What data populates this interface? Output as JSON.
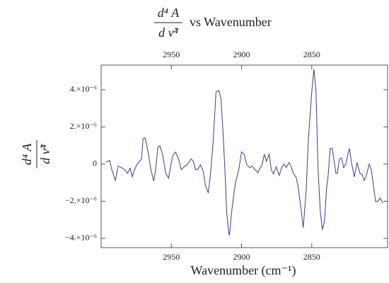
{
  "chart_data": {
    "type": "line",
    "title": {
      "numerator": "d⁴ A",
      "denominator": "d ν̃⁴",
      "text": "vs Wavenumber"
    },
    "x_label": "Wavenumber (cm⁻¹)",
    "y_label": {
      "numerator": "d⁴ A",
      "denominator": "d ν̃⁴"
    },
    "xlim": [
      3000,
      2796
    ],
    "xticks": [
      2950,
      2900,
      2850
    ],
    "ylim": [
      -4.5e-06,
      5.33e-06
    ],
    "yticks": [
      {
        "value": -4e-06,
        "label": "−4.×10⁻⁶"
      },
      {
        "value": -2e-06,
        "label": "−2.×10⁻⁶"
      },
      0,
      {
        "value": 2e-06,
        "label": "2.×10⁻⁶"
      },
      {
        "value": 4e-06,
        "label": "4.×10⁻⁶"
      }
    ],
    "x": [
      2996.5,
      2993.9,
      2992.4,
      2989.9,
      2987.9,
      2985.4,
      2983.3,
      2981.3,
      2979.3,
      2977.8,
      2976.3,
      2974.2,
      2972.7,
      2971.2,
      2970.2,
      2968.7,
      2966.7,
      2964.6,
      2962.6,
      2961.1,
      2959.6,
      2958.1,
      2956.1,
      2954.0,
      2952.0,
      2950.5,
      2949.0,
      2947.0,
      2944.9,
      2942.9,
      2940.9,
      2938.4,
      2935.9,
      2934.3,
      2932.8,
      2931.3,
      2929.3,
      2927.3,
      2925.8,
      2923.7,
      2922.2,
      2920.2,
      2918.2,
      2916.2,
      2914.6,
      2913.1,
      2911.6,
      2910.6,
      2909.1,
      2908.6,
      2907.1,
      2904.5,
      2902.0,
      2900.0,
      2898.0,
      2896.5,
      2894.4,
      2892.4,
      2890.4,
      2888.4,
      2886.9,
      2885.4,
      2883.8,
      2882.3,
      2880.3,
      2878.8,
      2877.3,
      2875.3,
      2873.2,
      2871.2,
      2869.7,
      2868.2,
      2866.2,
      2864.6,
      2863.1,
      2861.1,
      2859.6,
      2857.6,
      2856.1,
      2854.0,
      2852.5,
      2850.0,
      2848.5,
      2847.0,
      2845.5,
      2843.9,
      2842.4,
      2840.9,
      2839.4,
      2838.4,
      2836.9,
      2835.4,
      2834.3,
      2832.8,
      2831.8,
      2830.3,
      2828.8,
      2827.3,
      2825.8,
      2824.2,
      2823.2,
      2821.7,
      2819.7,
      2817.7,
      2815.7,
      2814.1,
      2812.6,
      2811.1,
      2809.1,
      2807.6,
      2806.1,
      2804.5,
      2803.0,
      2801.5,
      2799.5
    ],
    "series": [
      {
        "color": "#3b3b96",
        "values": [
          1.1e-07,
          1.9e-07,
          -3e-07,
          -8.8e-07,
          -1.1e-07,
          -1.9e-07,
          -3e-07,
          -5e-07,
          -2.3e-07,
          -6.9e-07,
          -3e-07,
          0,
          1.5e-07,
          2.7e-07,
          1.37e-06,
          1.41e-06,
          7.2e-07,
          -3e-07,
          -9.1e-07,
          -3e-07,
          9.1e-07,
          9.9e-07,
          4.6e-07,
          -5e-07,
          -7.6e-07,
          -1.1e-07,
          4.6e-07,
          6.5e-07,
          2.7e-07,
          -3e-07,
          -1.5e-07,
          0,
          2.7e-07,
          1.5e-07,
          -3e-07,
          -3e-07,
          -4e-08,
          -3.8e-07,
          -1.14e-06,
          -1.56e-06,
          -6.1e-07,
          1.22e-06,
          3.89e-06,
          3.96e-06,
          3.5e-06,
          1.6e-06,
          -6.9e-07,
          -2.59e-06,
          -3.73e-06,
          -3.81e-06,
          -2.59e-06,
          -1.07e-06,
          -3e-07,
          6.5e-07,
          5.3e-07,
          0,
          -1.9e-07,
          -1.1e-07,
          -3e-07,
          -4.6e-07,
          -2.3e-07,
          -4e-08,
          5.3e-07,
          1.5e-07,
          5.3e-07,
          -3e-07,
          -5.3e-07,
          -1.5e-07,
          -6.1e-07,
          -1.5e-07,
          0,
          -1.9e-07,
          8e-08,
          -1.5e-07,
          -5e-07,
          -7.2e-07,
          -1.26e-06,
          -2.44e-06,
          -3.43e-06,
          -1.45e-06,
          1.22e-06,
          3.89e-06,
          5.1e-06,
          3.89e-06,
          -3e-07,
          -2.59e-06,
          -3.54e-06,
          -3.05e-06,
          -1.26e-06,
          -6.9e-07,
          8.4e-07,
          8.4e-07,
          2.7e-07,
          -5e-07,
          -5e-07,
          2.7e-07,
          3.4e-07,
          -1.9e-07,
          0,
          5.3e-07,
          8.4e-07,
          8e-08,
          -6.9e-07,
          8e-08,
          -5e-07,
          -5.7e-07,
          -8.8e-07,
          -6.1e-07,
          0,
          -3e-07,
          -1.14e-06,
          -2.02e-06,
          -2.02e-06,
          -1.83e-06,
          -2.1e-06
        ]
      }
    ]
  }
}
